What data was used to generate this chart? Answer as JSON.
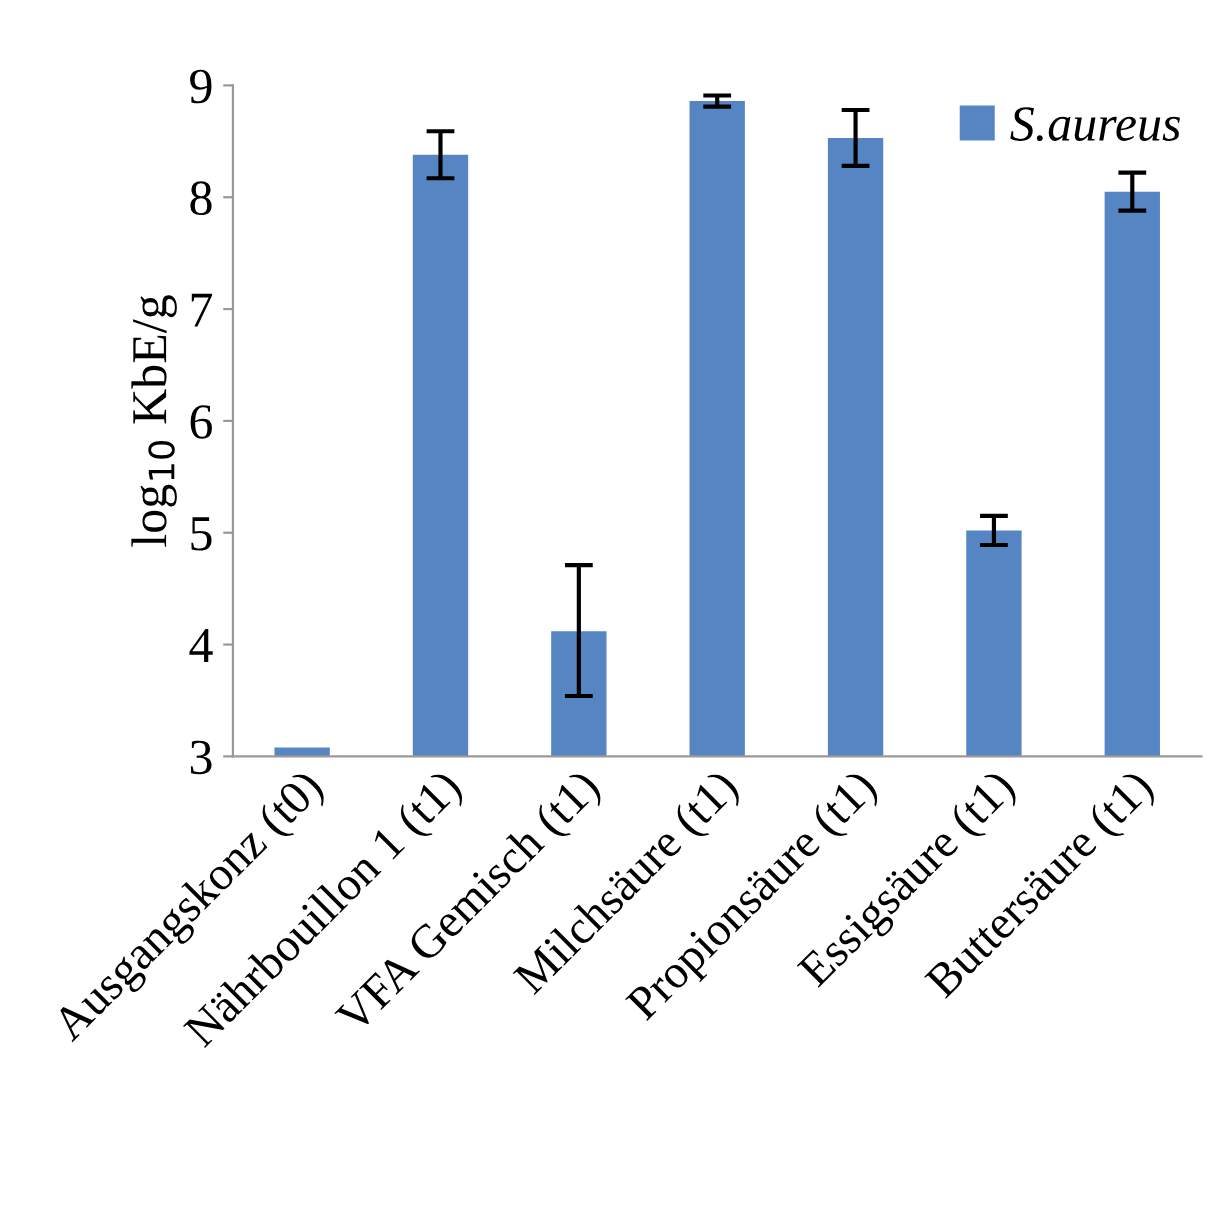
{
  "chart_data": {
    "type": "bar",
    "ylabel": "log$_{10}$ KbE/g",
    "categories": [
      "Ausgangskonz (t0)",
      "Nährbouillon 1 (t1)",
      "VFA Gemisch (t1)",
      "Milchsäure (t1)",
      "Propionsäure (t1)",
      "Essigsäure (t1)",
      "Buttersäure (t1)"
    ],
    "series": [
      {
        "name": "S.aureus",
        "color": "#5585c3",
        "values": [
          3.08,
          8.38,
          4.12,
          8.86,
          8.53,
          5.02,
          8.05
        ],
        "errors": [
          null,
          0.21,
          [
            3.54,
            4.71
          ],
          0.05,
          0.25,
          0.13,
          0.17
        ]
      }
    ],
    "ylim": [
      3,
      9
    ],
    "yticks": [
      3,
      4,
      5,
      6,
      7,
      8,
      9
    ],
    "grid": false,
    "legend": "top right"
  }
}
